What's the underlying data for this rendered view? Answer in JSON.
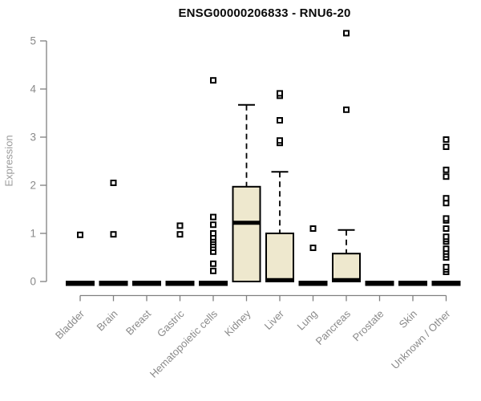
{
  "page": {
    "background": "#ffffff"
  },
  "chart_data": {
    "type": "boxplot",
    "title": "ENSG00000206833 - RNU6-20",
    "xlabel": "",
    "ylabel": "Expression",
    "ylim": [
      0,
      5
    ],
    "yticks": [
      0,
      1,
      2,
      3,
      4,
      5
    ],
    "grid": false,
    "legend": false,
    "colors": {
      "box_fill": "#EEE8CE",
      "box_border": "#000000",
      "median": "#000000",
      "whisker": "#000000",
      "axis": "#808080",
      "tick_label": "#8a8a8a",
      "title_text": "#0a0a0a",
      "axis_title": "#9a9a9a"
    },
    "categories": [
      "Bladder",
      "Brain",
      "Breast",
      "Gastric",
      "Hematopoietic cells",
      "Kidney",
      "Liver",
      "Lung",
      "Pancreas",
      "Prostate",
      "Skin",
      "Unknown / Other"
    ],
    "boxes": [
      {
        "category": "Bladder",
        "q1": 0,
        "median": 0,
        "q3": 0,
        "whisker_low": 0,
        "whisker_high": 0,
        "outliers": [
          0.97
        ]
      },
      {
        "category": "Brain",
        "q1": 0,
        "median": 0,
        "q3": 0,
        "whisker_low": 0,
        "whisker_high": 0,
        "outliers": [
          0.98,
          2.05
        ]
      },
      {
        "category": "Breast",
        "q1": 0,
        "median": 0,
        "q3": 0,
        "whisker_low": 0,
        "whisker_high": 0,
        "outliers": []
      },
      {
        "category": "Gastric",
        "q1": 0,
        "median": 0,
        "q3": 0,
        "whisker_low": 0,
        "whisker_high": 0,
        "outliers": [
          0.98,
          1.16
        ]
      },
      {
        "category": "Hematopoietic cells",
        "q1": 0,
        "median": 0,
        "q3": 0,
        "whisker_low": 0,
        "whisker_high": 0,
        "outliers": [
          0.22,
          0.37,
          0.62,
          0.7,
          0.76,
          0.82,
          0.87,
          0.92,
          1.0,
          1.18,
          1.34,
          4.18
        ]
      },
      {
        "category": "Kidney",
        "q1": 0,
        "median": 1.22,
        "q3": 1.97,
        "whisker_low": 0,
        "whisker_high": 3.67,
        "outliers": []
      },
      {
        "category": "Liver",
        "q1": 0,
        "median": 0.03,
        "q3": 1.0,
        "whisker_low": 0,
        "whisker_high": 2.28,
        "outliers": [
          2.88,
          2.93,
          3.35,
          3.86,
          3.91
        ]
      },
      {
        "category": "Lung",
        "q1": 0,
        "median": 0,
        "q3": 0,
        "whisker_low": 0,
        "whisker_high": 0,
        "outliers": [
          0.7,
          1.1
        ]
      },
      {
        "category": "Pancreas",
        "q1": 0,
        "median": 0.03,
        "q3": 0.58,
        "whisker_low": 0,
        "whisker_high": 1.07,
        "outliers": [
          3.57,
          5.16
        ]
      },
      {
        "category": "Prostate",
        "q1": 0,
        "median": 0,
        "q3": 0,
        "whisker_low": 0,
        "whisker_high": 0,
        "outliers": []
      },
      {
        "category": "Skin",
        "q1": 0,
        "median": 0,
        "q3": 0,
        "whisker_low": 0,
        "whisker_high": 0,
        "outliers": []
      },
      {
        "category": "Unknown / Other",
        "q1": 0,
        "median": 0,
        "q3": 0,
        "whisker_low": 0,
        "whisker_high": 0,
        "outliers": [
          0.2,
          0.25,
          0.3,
          0.5,
          0.56,
          0.62,
          0.68,
          0.83,
          0.88,
          0.93,
          1.1,
          1.27,
          1.31,
          1.63,
          1.73,
          2.18,
          2.32,
          2.8,
          2.95
        ]
      }
    ]
  }
}
